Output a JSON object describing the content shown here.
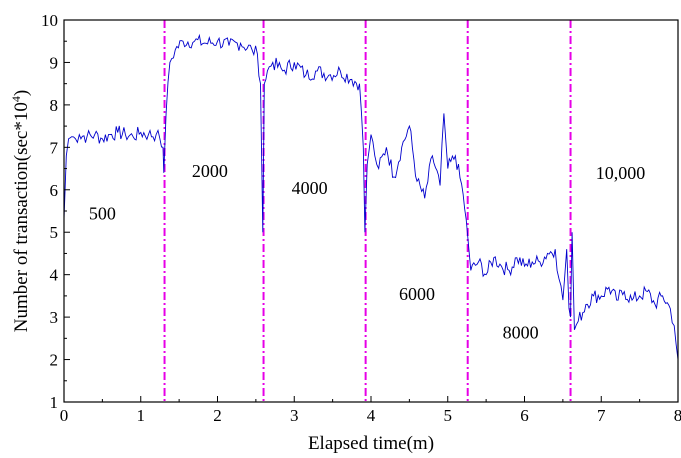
{
  "chart_data": {
    "type": "line",
    "xlabel": "Elapsed time(m)",
    "ylabel_main": "Number of transaction(sec*10",
    "ylabel_sup": "4",
    "ylabel_end": ")",
    "xlim": [
      0,
      8
    ],
    "ylim": [
      1,
      10
    ],
    "xticks": [
      "0",
      "1",
      "2",
      "3",
      "4",
      "5",
      "6",
      "7",
      "8"
    ],
    "yticks": [
      "1",
      "2",
      "3",
      "4",
      "5",
      "6",
      "7",
      "8",
      "9",
      "10"
    ],
    "grid": false,
    "line_color": "#0000cc",
    "divider_color": "#e600e6",
    "dividers": [
      1.31,
      2.6,
      3.93,
      5.26,
      6.6
    ],
    "annotations": [
      {
        "text": "500",
        "x": 0.5,
        "y": 5.3
      },
      {
        "text": "2000",
        "x": 1.9,
        "y": 6.3
      },
      {
        "text": "4000",
        "x": 3.2,
        "y": 5.9
      },
      {
        "text": "6000",
        "x": 4.6,
        "y": 3.4
      },
      {
        "text": "8000",
        "x": 5.95,
        "y": 2.5
      },
      {
        "text": "10,000",
        "x": 7.25,
        "y": 6.25
      }
    ],
    "series": [
      {
        "x": [
          0.0,
          0.03,
          0.06,
          0.1,
          0.15,
          0.2,
          0.3,
          0.4,
          0.5,
          0.6,
          0.7,
          0.8,
          0.9,
          1.0,
          1.1,
          1.2,
          1.25,
          1.29,
          1.3,
          1.33,
          1.38,
          1.45,
          1.55,
          1.7,
          1.85,
          2.0,
          2.15,
          2.3,
          2.45,
          2.52,
          2.56,
          2.59,
          2.61,
          2.65,
          2.72,
          2.85,
          3.0,
          3.15,
          3.3,
          3.45,
          3.6,
          3.75,
          3.85,
          3.9,
          3.92,
          3.95,
          4.0,
          4.05,
          4.1,
          4.2,
          4.3,
          4.4,
          4.5,
          4.6,
          4.7,
          4.8,
          4.9,
          4.95,
          5.0,
          5.1,
          5.2,
          5.24,
          5.27,
          5.3,
          5.4,
          5.5,
          5.6,
          5.7,
          5.8,
          5.9,
          6.0,
          6.1,
          6.2,
          6.3,
          6.4,
          6.45,
          6.5,
          6.55,
          6.58,
          6.6,
          6.62,
          6.65,
          6.7,
          6.8,
          6.9,
          7.0,
          7.1,
          7.2,
          7.3,
          7.4,
          7.5,
          7.6,
          7.7,
          7.8,
          7.9,
          7.95,
          8.0
        ],
        "values": [
          5.3,
          6.8,
          7.2,
          7.25,
          7.2,
          7.3,
          7.25,
          7.3,
          7.2,
          7.3,
          7.35,
          7.3,
          7.25,
          7.35,
          7.3,
          7.3,
          7.2,
          7.0,
          6.4,
          7.8,
          9.0,
          9.3,
          9.5,
          9.5,
          9.45,
          9.5,
          9.4,
          9.45,
          9.3,
          9.2,
          8.5,
          5.0,
          8.5,
          8.8,
          9.0,
          8.8,
          9.0,
          8.7,
          8.8,
          8.7,
          8.8,
          8.6,
          8.5,
          7.0,
          5.0,
          6.6,
          7.3,
          6.8,
          6.5,
          7.0,
          6.3,
          7.0,
          7.5,
          6.2,
          5.8,
          6.8,
          6.1,
          7.8,
          6.5,
          6.8,
          5.9,
          5.3,
          4.7,
          4.1,
          4.3,
          4.0,
          4.4,
          4.2,
          4.1,
          4.4,
          4.2,
          4.3,
          4.3,
          4.5,
          4.6,
          3.9,
          3.4,
          4.6,
          3.2,
          3.0,
          5.0,
          2.7,
          2.9,
          3.3,
          3.5,
          3.5,
          3.7,
          3.4,
          3.6,
          3.4,
          3.5,
          3.6,
          3.3,
          3.5,
          3.2,
          2.8,
          2.0
        ]
      }
    ]
  }
}
